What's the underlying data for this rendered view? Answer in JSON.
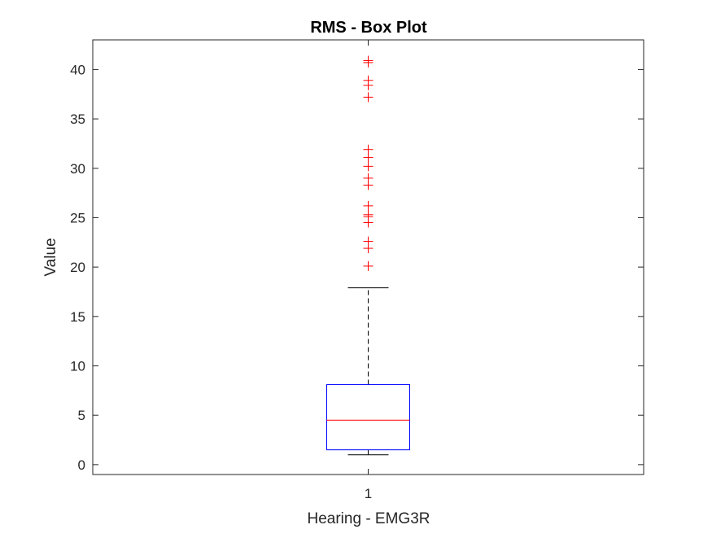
{
  "chart_data": {
    "type": "box",
    "title": "RMS - Box Plot",
    "xlabel": "Hearing - EMG3R",
    "ylabel": "Value",
    "categories": [
      "1"
    ],
    "ylim": [
      -1,
      43
    ],
    "yticks": [
      0,
      5,
      10,
      15,
      20,
      25,
      30,
      35,
      40
    ],
    "grid": false,
    "box": {
      "lower_whisker": 1.0,
      "q1": 1.5,
      "median": 4.5,
      "q3": 8.1,
      "upper_whisker": 17.9
    },
    "outliers": [
      20.1,
      21.9,
      22.6,
      24.5,
      25.1,
      25.3,
      26.2,
      28.3,
      29.0,
      30.2,
      31.1,
      31.9,
      37.2,
      38.4,
      38.9,
      40.7,
      40.9
    ],
    "colors": {
      "box": "#0000ff",
      "median": "#ff0000",
      "whisker": "#000000",
      "outlier": "#ff0000",
      "axes": "#262626"
    }
  }
}
